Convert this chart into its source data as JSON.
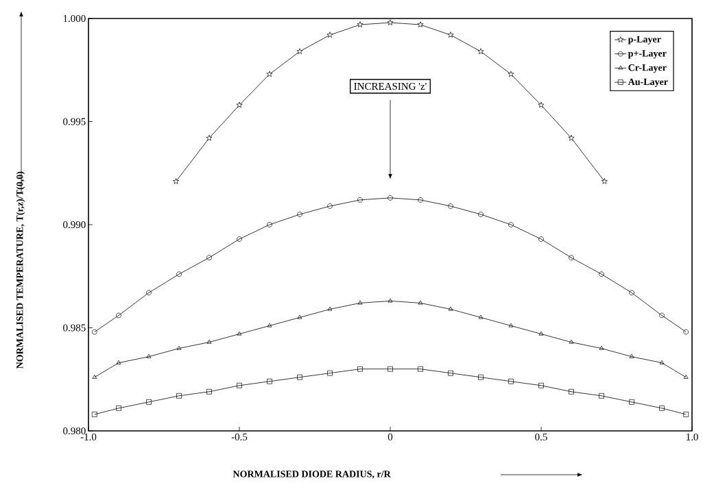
{
  "chart_data": {
    "type": "line",
    "xlabel": "NORMALISED DIODE RADIUS, r/R",
    "ylabel": "NORMALISED TEMPERATURE, T(r,z)/T(0,0)",
    "xlim": [
      -1.0,
      1.0
    ],
    "ylim": [
      0.98,
      1.0
    ],
    "xticks": [
      {
        "value": -1.0,
        "label": "-1.0"
      },
      -0.5,
      0,
      0.5,
      {
        "value": 1.0,
        "label": "1.0"
      }
    ],
    "yticks": [
      {
        "value": 0.98,
        "label": "0.980"
      },
      0.985,
      {
        "value": 0.99,
        "label": "0.990"
      },
      0.995,
      {
        "value": 1.0,
        "label": "1.000"
      }
    ],
    "grid": false,
    "legend": "top right",
    "line_style": "solid",
    "annotations": [
      "INCREASING 'z'"
    ],
    "series": [
      {
        "name": "p-Layer",
        "color": "#000000",
        "marker": "star",
        "x": [
          -0.71,
          -0.6,
          -0.5,
          -0.4,
          -0.3,
          -0.2,
          -0.1,
          0,
          0.1,
          0.2,
          0.3,
          0.4,
          0.5,
          0.6,
          0.71
        ],
        "values": [
          0.9921,
          0.9942,
          0.9958,
          0.9973,
          0.9984,
          0.9992,
          0.9997,
          0.9998,
          0.9997,
          0.9992,
          0.9984,
          0.9973,
          0.9958,
          0.9942,
          0.9921
        ]
      },
      {
        "name": "p+-Layer",
        "color": "#000000",
        "marker": "circle",
        "x": [
          -0.98,
          -0.9,
          -0.8,
          -0.7,
          -0.6,
          -0.5,
          -0.4,
          -0.3,
          -0.2,
          -0.1,
          0,
          0.1,
          0.2,
          0.3,
          0.4,
          0.5,
          0.6,
          0.7,
          0.8,
          0.9,
          0.98
        ],
        "values": [
          0.9848,
          0.9856,
          0.9867,
          0.9876,
          0.9884,
          0.9893,
          0.99,
          0.9905,
          0.9909,
          0.9912,
          0.9913,
          0.9912,
          0.9909,
          0.9905,
          0.99,
          0.9893,
          0.9884,
          0.9876,
          0.9867,
          0.9856,
          0.9848
        ]
      },
      {
        "name": "Cr-Layer",
        "color": "#000000",
        "marker": "triangle",
        "x": [
          -0.98,
          -0.9,
          -0.8,
          -0.7,
          -0.6,
          -0.5,
          -0.4,
          -0.3,
          -0.2,
          -0.1,
          0,
          0.1,
          0.2,
          0.3,
          0.4,
          0.5,
          0.6,
          0.7,
          0.8,
          0.9,
          0.98
        ],
        "values": [
          0.9826,
          0.9833,
          0.9836,
          0.984,
          0.9843,
          0.9847,
          0.9851,
          0.9855,
          0.9859,
          0.9862,
          0.9863,
          0.9862,
          0.9859,
          0.9855,
          0.9851,
          0.9847,
          0.9843,
          0.984,
          0.9836,
          0.9833,
          0.9826
        ]
      },
      {
        "name": "Au-Layer",
        "color": "#000000",
        "marker": "square",
        "x": [
          -0.98,
          -0.9,
          -0.8,
          -0.7,
          -0.6,
          -0.5,
          -0.4,
          -0.3,
          -0.2,
          -0.1,
          0,
          0.1,
          0.2,
          0.3,
          0.4,
          0.5,
          0.6,
          0.7,
          0.8,
          0.9,
          0.98
        ],
        "values": [
          0.9808,
          0.9811,
          0.9814,
          0.9817,
          0.9819,
          0.9822,
          0.9824,
          0.9826,
          0.9828,
          0.983,
          0.983,
          0.983,
          0.9828,
          0.9826,
          0.9824,
          0.9822,
          0.9819,
          0.9817,
          0.9814,
          0.9811,
          0.9808
        ]
      }
    ]
  }
}
